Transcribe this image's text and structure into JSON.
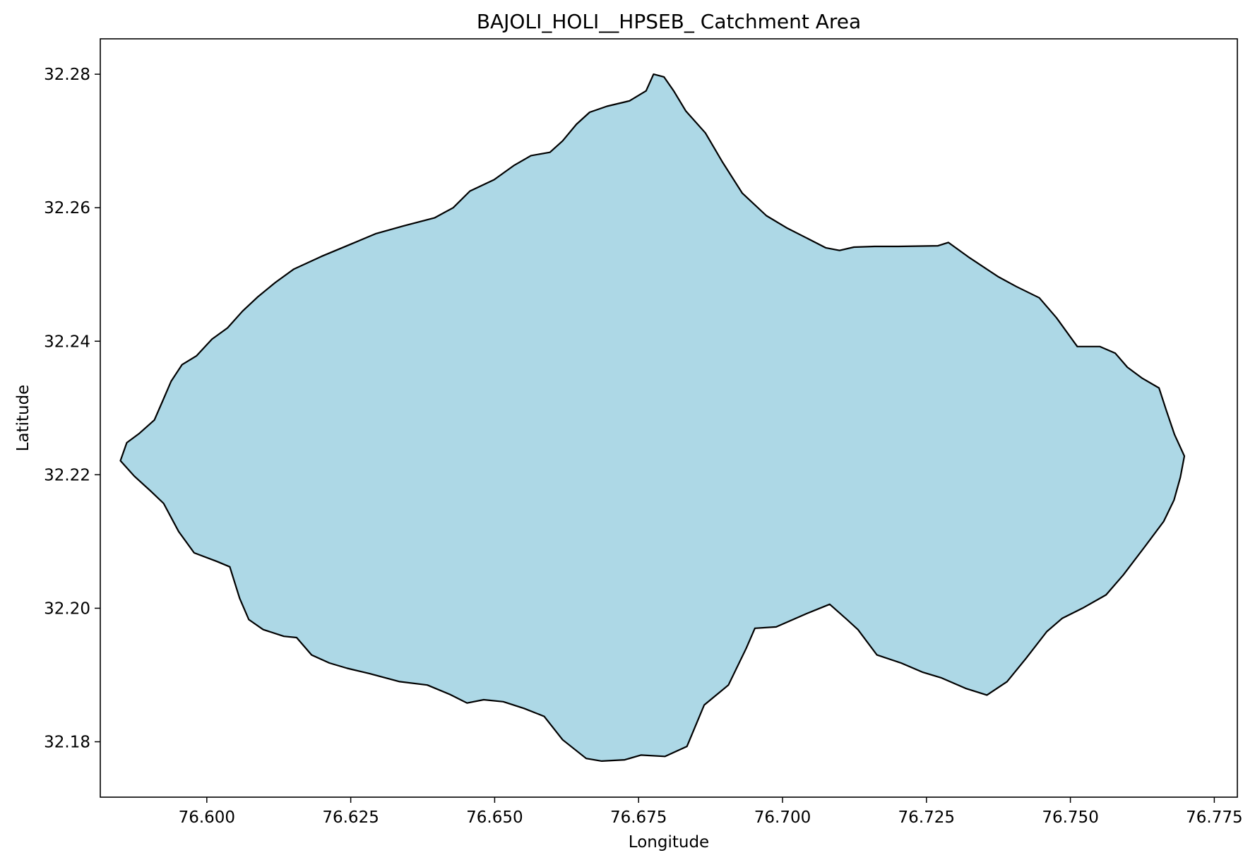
{
  "chart_data": {
    "type": "area",
    "title": "BAJOLI_HOLI__HPSEB_ Catchment Area",
    "xlabel": "Longitude",
    "ylabel": "Latitude",
    "xlim": [
      76.5815,
      76.779
    ],
    "ylim": [
      32.1717,
      32.2853
    ],
    "xticks": [
      76.6,
      76.625,
      76.65,
      76.675,
      76.7,
      76.725,
      76.75,
      76.775
    ],
    "xtick_labels": [
      "76.600",
      "76.625",
      "76.650",
      "76.675",
      "76.700",
      "76.725",
      "76.750",
      "76.775"
    ],
    "yticks": [
      32.18,
      32.2,
      32.22,
      32.24,
      32.26,
      32.28
    ],
    "ytick_labels": [
      "32.18",
      "32.20",
      "32.22",
      "32.24",
      "32.26",
      "32.28"
    ],
    "grid": false,
    "fill_color": "#add8e6",
    "edge_color": "#000000",
    "series": [
      {
        "name": "catchment-boundary",
        "points": [
          [
            76.6776,
            32.28
          ],
          [
            76.6794,
            32.2796
          ],
          [
            76.6811,
            32.2775
          ],
          [
            76.6832,
            32.2745
          ],
          [
            76.6866,
            32.2712
          ],
          [
            76.6896,
            32.2668
          ],
          [
            76.693,
            32.2622
          ],
          [
            76.6972,
            32.2588
          ],
          [
            76.7007,
            32.257
          ],
          [
            76.7041,
            32.2555
          ],
          [
            76.7075,
            32.254
          ],
          [
            76.7099,
            32.2536
          ],
          [
            76.7124,
            32.2541
          ],
          [
            76.716,
            32.2542
          ],
          [
            76.7201,
            32.2542
          ],
          [
            76.727,
            32.2543
          ],
          [
            76.7288,
            32.2548
          ],
          [
            76.7325,
            32.2525
          ],
          [
            76.7374,
            32.2497
          ],
          [
            76.7406,
            32.2482
          ],
          [
            76.7446,
            32.2465
          ],
          [
            76.7476,
            32.2435
          ],
          [
            76.7512,
            32.2392
          ],
          [
            76.7551,
            32.2392
          ],
          [
            76.7578,
            32.2382
          ],
          [
            76.7599,
            32.2361
          ],
          [
            76.7624,
            32.2345
          ],
          [
            76.7654,
            32.233
          ],
          [
            76.7666,
            32.2298
          ],
          [
            76.7681,
            32.226
          ],
          [
            76.7698,
            32.2228
          ],
          [
            76.7691,
            32.2196
          ],
          [
            76.768,
            32.2162
          ],
          [
            76.7662,
            32.213
          ],
          [
            76.7629,
            32.2092
          ],
          [
            76.7592,
            32.205
          ],
          [
            76.7562,
            32.202
          ],
          [
            76.7521,
            32.2
          ],
          [
            76.7486,
            32.1985
          ],
          [
            76.7459,
            32.1965
          ],
          [
            76.7423,
            32.1925
          ],
          [
            76.739,
            32.189
          ],
          [
            76.7355,
            32.187
          ],
          [
            76.7318,
            32.188
          ],
          [
            76.7275,
            32.1896
          ],
          [
            76.7244,
            32.1904
          ],
          [
            76.7206,
            32.1918
          ],
          [
            76.7164,
            32.193
          ],
          [
            76.7131,
            32.1968
          ],
          [
            76.7112,
            32.1983
          ],
          [
            76.7082,
            32.2006
          ],
          [
            76.7042,
            32.1992
          ],
          [
            76.6989,
            32.1972
          ],
          [
            76.6952,
            32.197
          ],
          [
            76.6937,
            32.194
          ],
          [
            76.6906,
            32.1885
          ],
          [
            76.6864,
            32.1855
          ],
          [
            76.6834,
            32.1793
          ],
          [
            76.6796,
            32.1778
          ],
          [
            76.6754,
            32.178
          ],
          [
            76.6726,
            32.1773
          ],
          [
            76.6686,
            32.1771
          ],
          [
            76.6659,
            32.1775
          ],
          [
            76.6618,
            32.1803
          ],
          [
            76.6586,
            32.1838
          ],
          [
            76.6551,
            32.185
          ],
          [
            76.6515,
            32.186
          ],
          [
            76.6481,
            32.1863
          ],
          [
            76.6452,
            32.1858
          ],
          [
            76.6422,
            32.1871
          ],
          [
            76.6383,
            32.1885
          ],
          [
            76.6335,
            32.189
          ],
          [
            76.6283,
            32.1902
          ],
          [
            76.6244,
            32.191
          ],
          [
            76.6213,
            32.1918
          ],
          [
            76.6182,
            32.193
          ],
          [
            76.6156,
            32.1956
          ],
          [
            76.6134,
            32.1958
          ],
          [
            76.6098,
            32.1968
          ],
          [
            76.6073,
            32.1983
          ],
          [
            76.6057,
            32.2015
          ],
          [
            76.604,
            32.2062
          ],
          [
            76.6018,
            32.207
          ],
          [
            76.5978,
            32.2083
          ],
          [
            76.5951,
            32.2115
          ],
          [
            76.5925,
            32.2157
          ],
          [
            76.5902,
            32.2176
          ],
          [
            76.5874,
            32.2198
          ],
          [
            76.585,
            32.2221
          ],
          [
            76.5861,
            32.2248
          ],
          [
            76.5883,
            32.2262
          ],
          [
            76.5909,
            32.2282
          ],
          [
            76.5924,
            32.2312
          ],
          [
            76.5938,
            32.234
          ],
          [
            76.5957,
            32.2365
          ],
          [
            76.5982,
            32.2378
          ],
          [
            76.6009,
            32.2403
          ],
          [
            76.6036,
            32.242
          ],
          [
            76.6062,
            32.2445
          ],
          [
            76.6088,
            32.2466
          ],
          [
            76.6119,
            32.2488
          ],
          [
            76.6151,
            32.2508
          ],
          [
            76.6199,
            32.2527
          ],
          [
            76.6249,
            32.2545
          ],
          [
            76.6293,
            32.2561
          ],
          [
            76.6343,
            32.2573
          ],
          [
            76.6396,
            32.2585
          ],
          [
            76.6428,
            32.26
          ],
          [
            76.6457,
            32.2625
          ],
          [
            76.6499,
            32.2642
          ],
          [
            76.6533,
            32.2663
          ],
          [
            76.6563,
            32.2678
          ],
          [
            76.6596,
            32.2683
          ],
          [
            76.6618,
            32.27
          ],
          [
            76.6642,
            32.2725
          ],
          [
            76.6665,
            32.2743
          ],
          [
            76.6695,
            32.2752
          ],
          [
            76.6734,
            32.276
          ],
          [
            76.6763,
            32.2775
          ],
          [
            76.6776,
            32.28
          ]
        ]
      }
    ]
  }
}
